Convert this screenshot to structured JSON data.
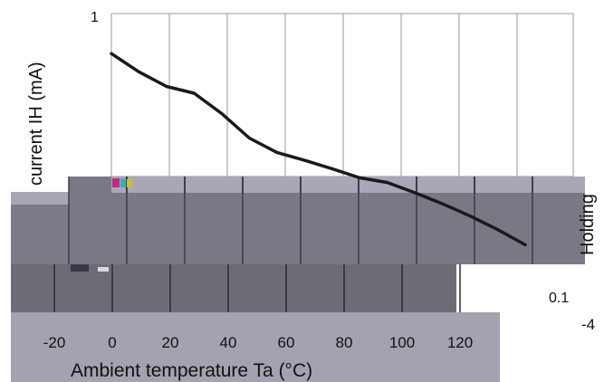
{
  "chart_data": {
    "type": "line",
    "xlabel": "Ambient temperature Ta (°C)",
    "ylabel": "Holding current IH (mA)",
    "ylabel_parts": [
      "current IH (mA)",
      "Holding"
    ],
    "x_ticks": [
      "-20",
      "0",
      "20",
      "40",
      "60",
      "80",
      "100",
      "120"
    ],
    "x_ticks_extra": "-4",
    "y_ticks": [
      "1",
      "0.1"
    ],
    "series": [
      {
        "x": [
          0,
          10,
          20,
          30,
          40,
          50,
          60,
          70,
          80,
          90,
          100,
          110,
          120,
          130,
          140,
          150
        ],
        "y": [
          0.72,
          0.62,
          0.55,
          0.52,
          0.44,
          0.36,
          0.32,
          0.3,
          0.28,
          0.26,
          0.25,
          0.23,
          0.21,
          0.19,
          0.17,
          0.15
        ]
      }
    ],
    "grid": true
  },
  "colors": {
    "overlay_dark": "#6f6c78",
    "overlay_mid": "#8d8a98",
    "overlay_light": "#a9a7b6",
    "line": "#1a1a1a",
    "grid": "#b5b5b5"
  }
}
